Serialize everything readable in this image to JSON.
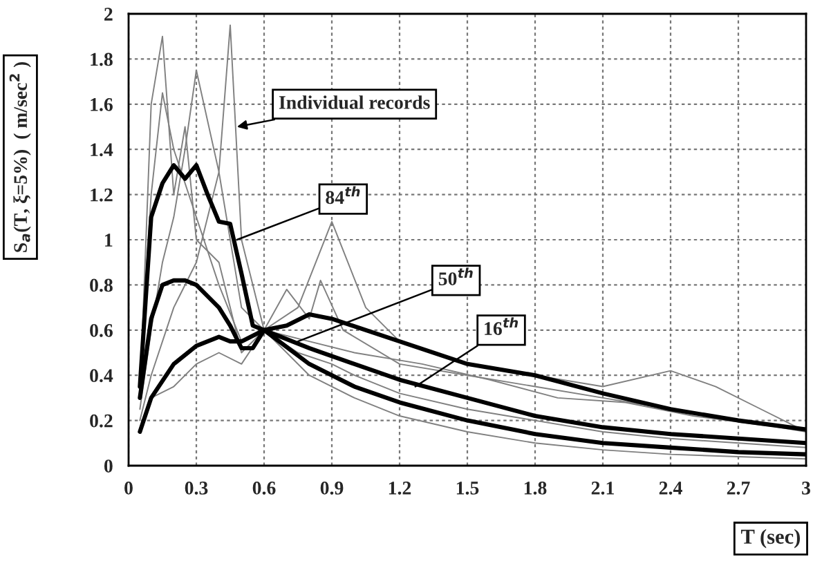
{
  "chart_data": {
    "type": "line",
    "xlabel": "T (sec)",
    "ylabel": "S$_{a}$(T, ξ=5%)  ( m/sec$^{2}$ )",
    "xlim": [
      0,
      3
    ],
    "xticks": [
      0,
      0.3,
      0.6,
      0.9,
      1.2,
      1.5,
      1.8,
      2.1,
      2.4,
      2.7,
      3
    ],
    "ylim": [
      0,
      2
    ],
    "yticks": [
      0,
      0.2,
      0.4,
      0.6,
      0.8,
      1,
      1.2,
      1.4,
      1.6,
      1.8,
      2
    ],
    "grid": true,
    "marker": "none",
    "line_style": "solid",
    "annotations": [
      {
        "text": "Individual records",
        "x": 0.48,
        "y": 1.5
      },
      {
        "text": "84$^{th}$",
        "x": 0.48,
        "y": 1.0
      },
      {
        "text": "50$^{th}$",
        "x": 0.75,
        "y": 0.55
      },
      {
        "text": "16$^{th}$",
        "x": 1.27,
        "y": 0.35
      }
    ],
    "series": [
      {
        "color": "#808080",
        "x": [
          0.05,
          0.1,
          0.15,
          0.2,
          0.25,
          0.3,
          0.4,
          0.5,
          0.6,
          0.75,
          0.9,
          1.0,
          1.2,
          1.5,
          1.8,
          2.1,
          2.4,
          2.7,
          3.0
        ],
        "values": [
          0.3,
          1.6,
          1.9,
          1.2,
          1.5,
          1.0,
          0.9,
          0.5,
          0.6,
          0.5,
          0.45,
          0.4,
          0.32,
          0.25,
          0.2,
          0.15,
          0.12,
          0.1,
          0.08
        ]
      },
      {
        "color": "#808080",
        "x": [
          0.05,
          0.1,
          0.15,
          0.2,
          0.25,
          0.3,
          0.4,
          0.45,
          0.5,
          0.6,
          0.75,
          0.9,
          1.05,
          1.2,
          1.5,
          1.8,
          2.1,
          2.4,
          2.6,
          2.8,
          3.0
        ],
        "values": [
          0.25,
          0.6,
          0.9,
          1.1,
          1.4,
          1.75,
          1.3,
          1.95,
          1.0,
          0.6,
          0.7,
          1.08,
          0.7,
          0.55,
          0.45,
          0.4,
          0.35,
          0.42,
          0.35,
          0.25,
          0.15
        ]
      },
      {
        "color": "#808080",
        "x": [
          0.05,
          0.1,
          0.2,
          0.3,
          0.4,
          0.5,
          0.6,
          0.7,
          0.8,
          0.85,
          0.95,
          1.2,
          1.5,
          1.8,
          2.1,
          2.4,
          2.7,
          3.0
        ],
        "values": [
          0.2,
          0.4,
          0.7,
          0.9,
          1.3,
          0.7,
          0.6,
          0.78,
          0.65,
          0.82,
          0.6,
          0.45,
          0.4,
          0.35,
          0.3,
          0.25,
          0.2,
          0.15
        ]
      },
      {
        "color": "#808080",
        "x": [
          0.05,
          0.1,
          0.2,
          0.3,
          0.4,
          0.5,
          0.6,
          0.8,
          1.0,
          1.2,
          1.5,
          1.8,
          2.1,
          2.4,
          2.7,
          3.0
        ],
        "values": [
          0.15,
          0.3,
          0.35,
          0.45,
          0.5,
          0.45,
          0.6,
          0.4,
          0.3,
          0.22,
          0.15,
          0.1,
          0.07,
          0.05,
          0.04,
          0.03
        ]
      },
      {
        "color": "#808080",
        "x": [
          0.05,
          0.1,
          0.15,
          0.2,
          0.3,
          0.4,
          0.5,
          0.6,
          0.8,
          1.0,
          1.3,
          1.6,
          1.9,
          2.2,
          2.5,
          2.8,
          3.0
        ],
        "values": [
          0.4,
          1.2,
          1.65,
          1.4,
          1.1,
          0.8,
          0.55,
          0.6,
          0.55,
          0.5,
          0.45,
          0.38,
          0.3,
          0.28,
          0.22,
          0.18,
          0.16
        ]
      },
      {
        "color": "#000000",
        "x": [
          0.05,
          0.1,
          0.15,
          0.2,
          0.25,
          0.3,
          0.35,
          0.4,
          0.45,
          0.5,
          0.55,
          0.6,
          0.7,
          0.8,
          0.9,
          1.2,
          1.5,
          1.8,
          2.1,
          2.4,
          2.7,
          3.0
        ],
        "values": [
          0.35,
          1.1,
          1.25,
          1.33,
          1.27,
          1.33,
          1.2,
          1.08,
          1.07,
          0.85,
          0.62,
          0.6,
          0.62,
          0.67,
          0.65,
          0.55,
          0.45,
          0.4,
          0.32,
          0.25,
          0.2,
          0.16
        ]
      },
      {
        "color": "#000000",
        "x": [
          0.05,
          0.1,
          0.15,
          0.2,
          0.25,
          0.3,
          0.4,
          0.45,
          0.5,
          0.55,
          0.6,
          0.8,
          1.0,
          1.2,
          1.5,
          1.8,
          2.1,
          2.4,
          2.7,
          3.0
        ],
        "values": [
          0.3,
          0.65,
          0.8,
          0.82,
          0.82,
          0.8,
          0.7,
          0.62,
          0.52,
          0.52,
          0.6,
          0.52,
          0.45,
          0.38,
          0.3,
          0.22,
          0.17,
          0.14,
          0.12,
          0.1
        ]
      },
      {
        "color": "#000000",
        "x": [
          0.05,
          0.1,
          0.2,
          0.3,
          0.4,
          0.45,
          0.5,
          0.6,
          0.8,
          1.0,
          1.2,
          1.5,
          1.8,
          2.1,
          2.4,
          2.7,
          3.0
        ],
        "values": [
          0.15,
          0.3,
          0.45,
          0.53,
          0.57,
          0.55,
          0.55,
          0.6,
          0.45,
          0.35,
          0.28,
          0.2,
          0.14,
          0.1,
          0.08,
          0.06,
          0.05
        ]
      }
    ]
  }
}
